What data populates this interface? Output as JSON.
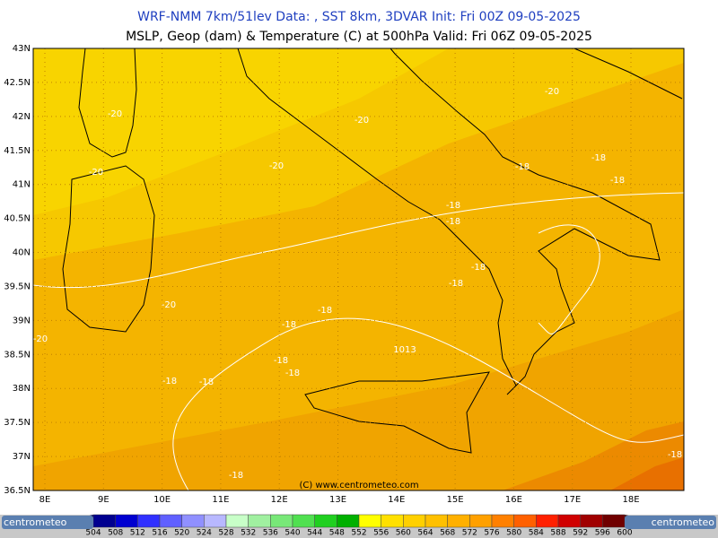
{
  "header": {
    "title": "WRF-NMM 7km/51lev  Data: , SST 8km, 3DVAR  Init: Fri 00Z 09-05-2025",
    "subtitle": "MSLP, Geop (dam) & Temperature (C) at 500hPa  Valid: Fri 06Z 09-05-2025"
  },
  "map": {
    "lat_labels": [
      "43N",
      "42.5N",
      "42N",
      "41.5N",
      "41N",
      "40.5N",
      "40N",
      "39.5N",
      "39N",
      "38.5N",
      "38N",
      "37.5N",
      "37N",
      "36.5N"
    ],
    "lon_labels": [
      "8E",
      "9E",
      "10E",
      "11E",
      "12E",
      "13E",
      "14E",
      "15E",
      "16E",
      "17E",
      "18E"
    ],
    "contour_labels": [
      "-20",
      "-20",
      "-20",
      "-20",
      "-20",
      "-20",
      "-20",
      "-18",
      "-18",
      "-18",
      "-18",
      "-18",
      "-18",
      "-18",
      "-18",
      "-18",
      "-18",
      "-18",
      "-18",
      "-18",
      "-18",
      "-18",
      "1013"
    ],
    "copyright": "(C) www.centrometeo.com"
  },
  "colorbar": {
    "labels": [
      504,
      508,
      512,
      516,
      520,
      524,
      528,
      532,
      536,
      540,
      544,
      548,
      552,
      556,
      560,
      564,
      568,
      572,
      576,
      580,
      584,
      588,
      592,
      596,
      600
    ]
  },
  "logos": [
    "centrometeo",
    "centrometeo"
  ]
}
